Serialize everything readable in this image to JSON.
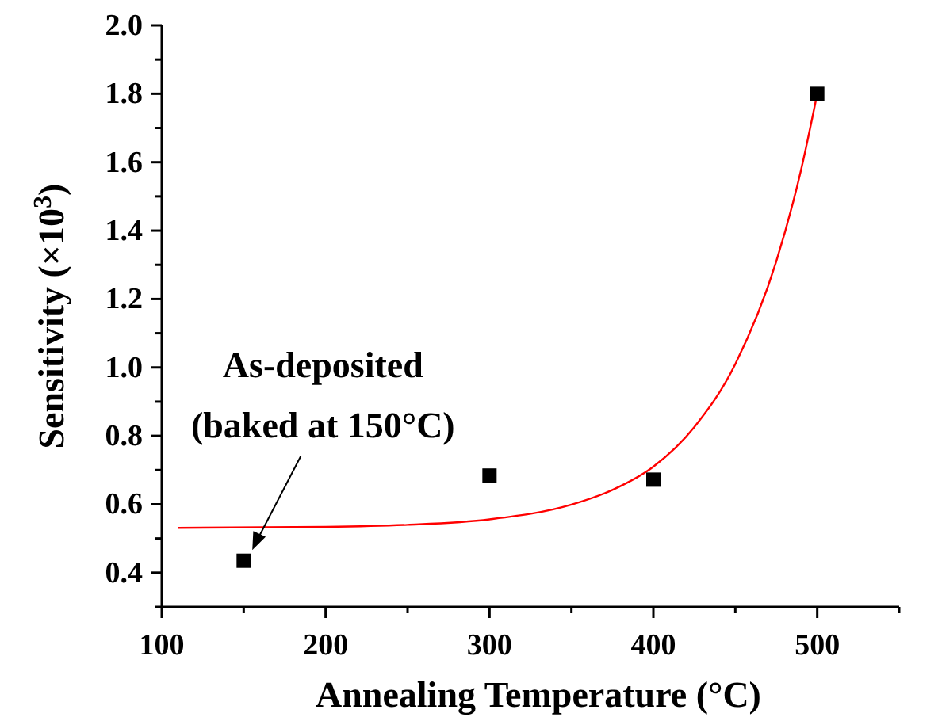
{
  "chart_data": {
    "type": "scatter",
    "xlabel": "Annealing Temperature (°C)",
    "ylabel": "Sensitivity (×10$^{3}$)",
    "xlim": [
      100,
      550
    ],
    "xticks": [
      100,
      {
        "value": 150,
        "label": null
      },
      200,
      {
        "value": 250,
        "label": null
      },
      300,
      {
        "value": 350,
        "label": null
      },
      400,
      {
        "value": 450,
        "label": null
      },
      500,
      {
        "value": 550,
        "label": null
      }
    ],
    "ylim": [
      0.3,
      2.0
    ],
    "yticks": [
      {
        "value": 0.3,
        "label": null
      },
      0.4,
      {
        "value": 0.5,
        "label": null
      },
      0.6,
      {
        "value": 0.7,
        "label": null
      },
      0.8,
      {
        "value": 0.9,
        "label": null
      },
      {
        "value": 1.0,
        "label": "1.0"
      },
      {
        "value": 1.1,
        "label": null
      },
      1.2,
      {
        "value": 1.3,
        "label": null
      },
      1.4,
      {
        "value": 1.5,
        "label": null
      },
      1.6,
      {
        "value": 1.7,
        "label": null
      },
      1.8,
      {
        "value": 1.9,
        "label": null
      },
      {
        "value": 2.0,
        "label": "2.0"
      }
    ],
    "series": [
      {
        "marker": "square",
        "color": "#000000",
        "x": [
          150,
          300,
          400,
          500
        ],
        "values": [
          0.435,
          0.684,
          0.672,
          1.8
        ]
      },
      {
        "type": "line",
        "marker": "none",
        "line_style": "solid",
        "color": "#ff0000",
        "x": [
          110,
          200,
          250,
          300,
          350,
          375,
          400,
          425,
          450,
          475,
          490,
          500
        ],
        "values": [
          0.531,
          0.534,
          0.54,
          0.556,
          0.599,
          0.642,
          0.71,
          0.826,
          1.01,
          1.31,
          1.575,
          1.8
        ]
      }
    ],
    "annotations": [
      "As-deposited\n(baked at 150°C)"
    ]
  }
}
